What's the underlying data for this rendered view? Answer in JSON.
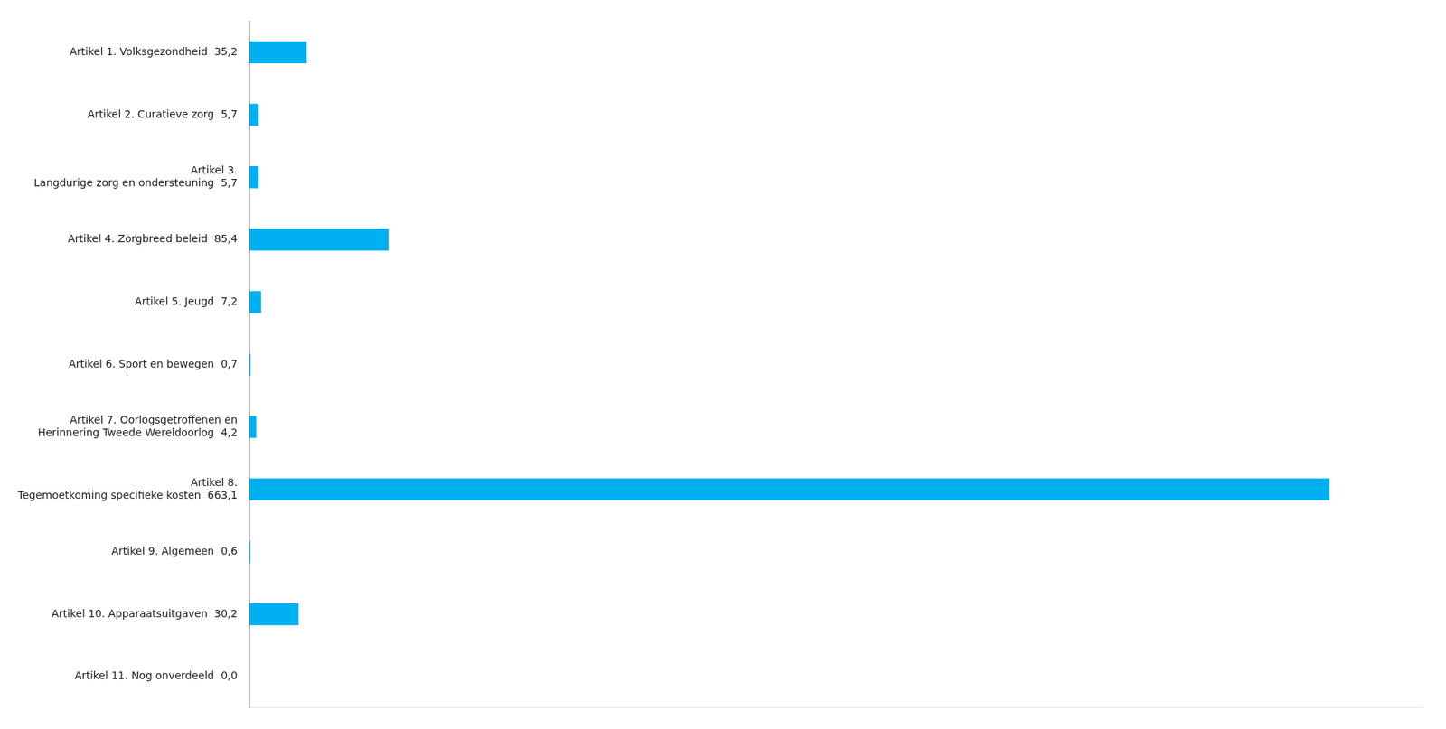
{
  "chart_data": {
    "type": "bar",
    "orientation": "horizontal",
    "categories": [
      "Artikel 11. Nog onverdeeld  0,0",
      "Artikel 10. Apparaatsuitgaven  30,2",
      "Artikel 9. Algemeen  0,6",
      "Artikel 8.\nTegemoetkoming specifieke kosten  663,1",
      "Artikel 7. Oorlogsgetroffenen en\nHerinnering Tweede Wereldoorlog  4,2",
      "Artikel 6. Sport en bewegen  0,7",
      "Artikel 5. Jeugd  7,2",
      "Artikel 4. Zorgbreed beleid  85,4",
      "Artikel 3.\nLangdurige zorg en ondersteuning  5,7",
      "Artikel 2. Curatieve zorg  5,7",
      "Artikel 1. Volksgezondheid  35,2"
    ],
    "values": [
      0.0,
      30.2,
      0.6,
      663.1,
      4.2,
      0.7,
      7.2,
      85.4,
      5.7,
      5.7,
      35.2
    ],
    "color": "#00b0f0",
    "xlim": [
      0,
      720
    ],
    "grid": false,
    "tick_labels": "y"
  }
}
